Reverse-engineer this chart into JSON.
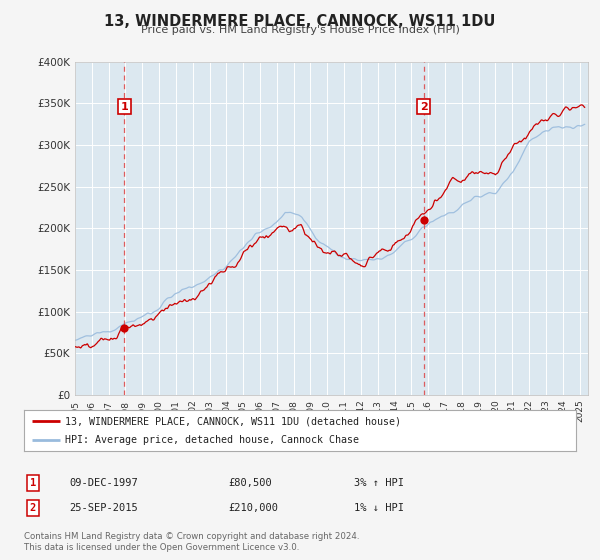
{
  "title": "13, WINDERMERE PLACE, CANNOCK, WS11 1DU",
  "subtitle": "Price paid vs. HM Land Registry's House Price Index (HPI)",
  "bg_color": "#f5f5f5",
  "plot_bg_color": "#dce8f0",
  "xmin": 1995.0,
  "xmax": 2025.5,
  "ymin": 0,
  "ymax": 400000,
  "yticks": [
    0,
    50000,
    100000,
    150000,
    200000,
    250000,
    300000,
    350000,
    400000
  ],
  "ytick_labels": [
    "£0",
    "£50K",
    "£100K",
    "£150K",
    "£200K",
    "£250K",
    "£300K",
    "£350K",
    "£400K"
  ],
  "sale1_x": 1997.94,
  "sale1_y": 80500,
  "sale2_x": 2015.73,
  "sale2_y": 210000,
  "vline1_x": 1997.94,
  "vline2_x": 2015.73,
  "legend_label1": "13, WINDERMERE PLACE, CANNOCK, WS11 1DU (detached house)",
  "legend_label2": "HPI: Average price, detached house, Cannock Chase",
  "table_row1_num": "1",
  "table_row1_date": "09-DEC-1997",
  "table_row1_price": "£80,500",
  "table_row1_hpi": "3% ↑ HPI",
  "table_row2_num": "2",
  "table_row2_date": "25-SEP-2015",
  "table_row2_price": "£210,000",
  "table_row2_hpi": "1% ↓ HPI",
  "footer1": "Contains HM Land Registry data © Crown copyright and database right 2024.",
  "footer2": "This data is licensed under the Open Government Licence v3.0.",
  "red_line_color": "#cc0000",
  "blue_line_color": "#99bbdd",
  "marker_color": "#cc0000",
  "vline_color": "#dd4444"
}
